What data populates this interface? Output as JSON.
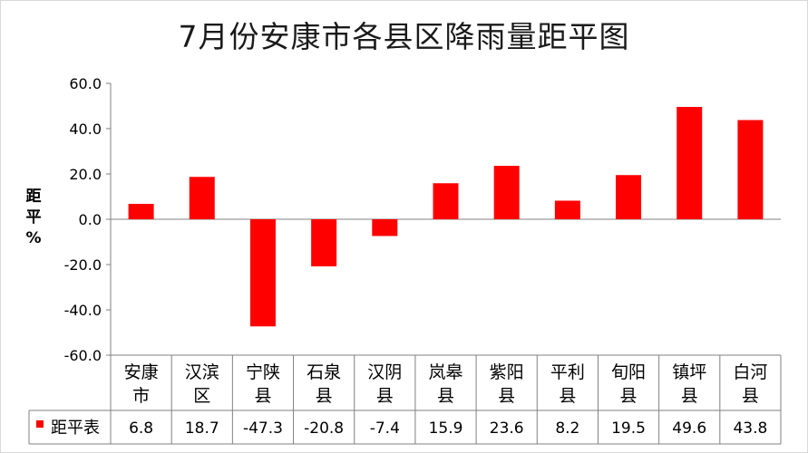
{
  "chart_data": {
    "type": "bar",
    "title": "7月份安康市各县区降雨量距平图",
    "ylabel_lines": [
      "距",
      "平",
      "%"
    ],
    "ylim": [
      -60,
      60
    ],
    "ytick_labels": [
      "60.0",
      "40.0",
      "20.0",
      "0.0",
      "-20.0",
      "-40.0",
      "-60.0"
    ],
    "yticks": [
      60,
      40,
      20,
      0,
      -20,
      -40,
      -60
    ],
    "categories": [
      [
        "安康",
        "市"
      ],
      [
        "汉滨",
        "区"
      ],
      [
        "宁陕",
        "县"
      ],
      [
        "石泉",
        "县"
      ],
      [
        "汉阴",
        "县"
      ],
      [
        "岚皋",
        "县"
      ],
      [
        "紫阳",
        "县"
      ],
      [
        "平利",
        "县"
      ],
      [
        "旬阳",
        "县"
      ],
      [
        "镇坪",
        "县"
      ],
      [
        "白河",
        "县"
      ]
    ],
    "series": [
      {
        "name": "距平表",
        "values": [
          6.8,
          18.7,
          -47.3,
          -20.8,
          -7.4,
          15.9,
          23.6,
          8.2,
          19.5,
          49.6,
          43.8
        ],
        "value_labels": [
          "6.8",
          "18.7",
          "-47.3",
          "-20.8",
          "-7.4",
          "15.9",
          "23.6",
          "8.2",
          "19.5",
          "49.6",
          "43.8"
        ],
        "color": "#ff0000"
      }
    ],
    "data_table": true,
    "grid": false
  },
  "colors": {
    "bar": "#ff0000",
    "axis": "#808080",
    "frame": "#d9d9d9"
  }
}
